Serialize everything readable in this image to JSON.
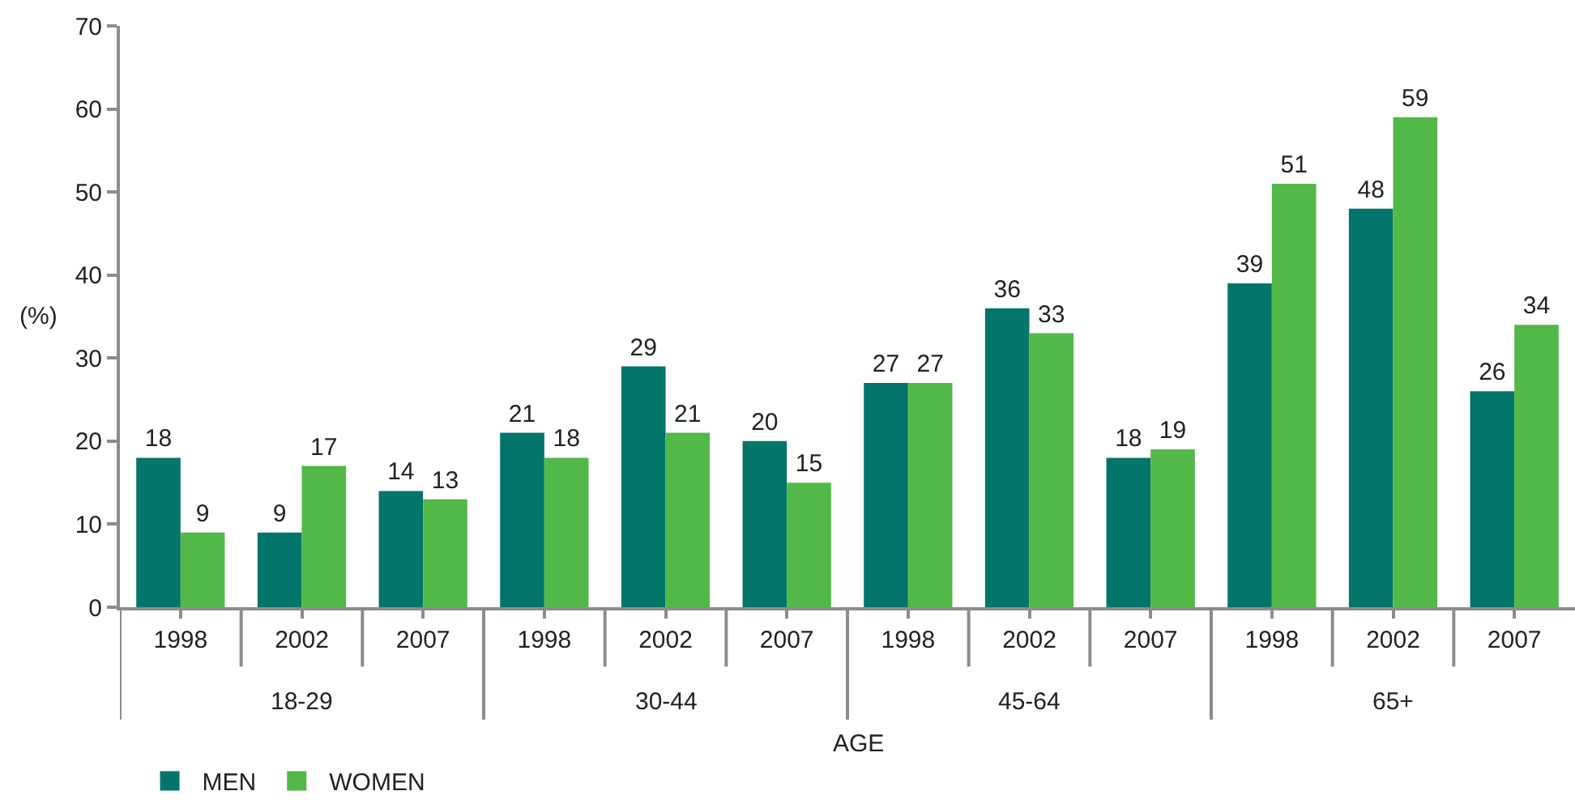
{
  "chart_data": {
    "type": "bar",
    "xlabel": "AGE",
    "ylabel": "(%)",
    "categories": [
      "1998",
      "2002",
      "2007",
      "1998",
      "2002",
      "2007",
      "1998",
      "2002",
      "2007",
      "1998",
      "2002",
      "2007"
    ],
    "series": [
      {
        "name": "MEN",
        "color": "#04756a",
        "values": [
          18,
          9,
          14,
          21,
          29,
          20,
          27,
          36,
          18,
          39,
          48,
          26
        ]
      },
      {
        "name": "WOMEN",
        "color": "#52b848",
        "values": [
          9,
          17,
          13,
          18,
          21,
          15,
          27,
          33,
          19,
          51,
          59,
          34
        ]
      }
    ],
    "annotations": [
      "18-29",
      "30-44",
      "45-64",
      "65+"
    ],
    "ylim": [
      0,
      70
    ],
    "yticks": [
      0,
      10,
      20,
      30,
      40,
      50,
      60,
      70
    ],
    "data_labels": true,
    "legend": "bottom left"
  }
}
